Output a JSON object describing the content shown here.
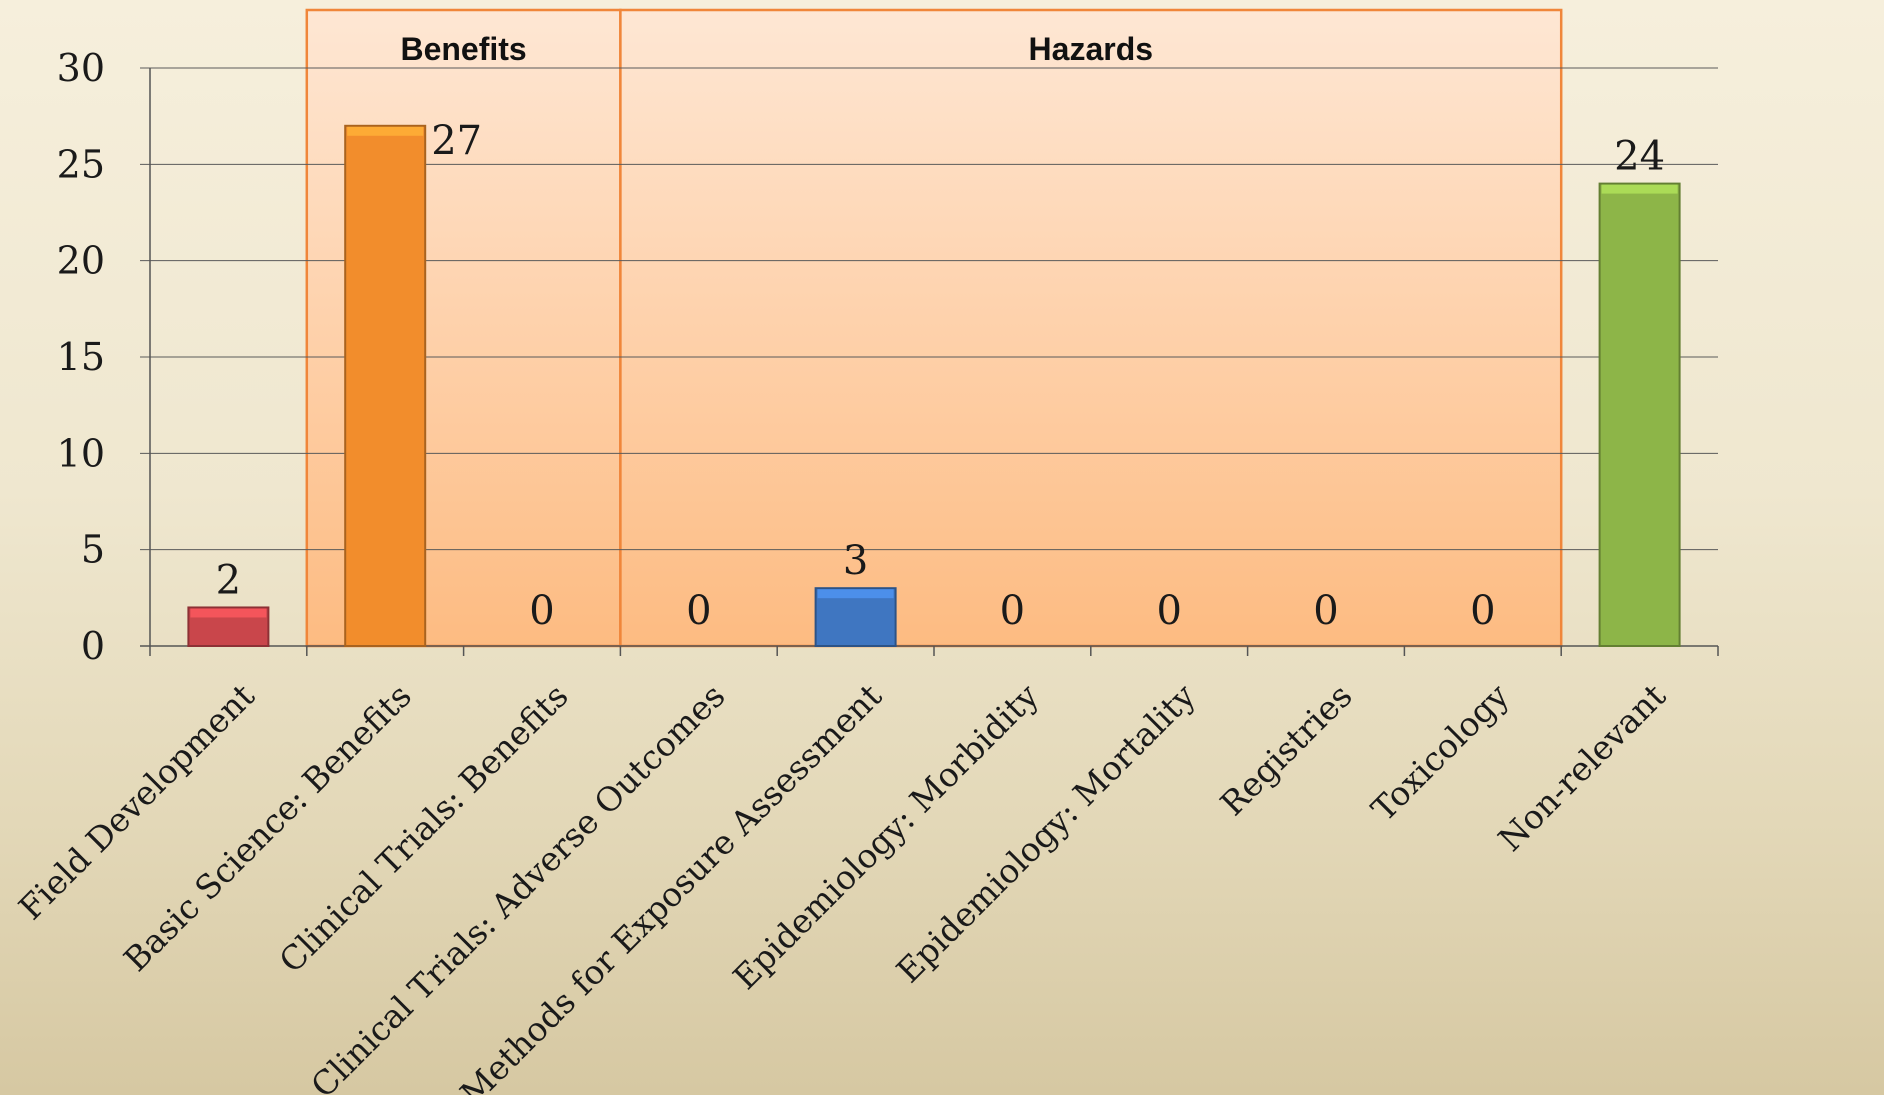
{
  "chart_data": {
    "type": "bar",
    "title": "",
    "xlabel": "",
    "ylabel": "",
    "ylim": [
      0,
      30
    ],
    "yticks": [
      0,
      5,
      10,
      15,
      20,
      25,
      30
    ],
    "grid": true,
    "categories": [
      "Field Development",
      "Basic Science: Benefits",
      "Clinical Trials: Benefits",
      "Clinical Trials: Adverse Outcomes",
      "Methods for Exposure Assessment",
      "Epidemiology: Morbidity",
      "Epidemiology: Mortality",
      "Registries",
      "Toxicology",
      "Non-relevant"
    ],
    "values": [
      2,
      27,
      0,
      0,
      3,
      0,
      0,
      0,
      0,
      24
    ],
    "data_labels": [
      "2",
      "27",
      "0",
      "0",
      "3",
      "0",
      "0",
      "0",
      "0",
      "24"
    ],
    "colors": [
      "#c9464b",
      "#f28d2c",
      "#f28d2c",
      "#f28d2c",
      "#3f76c1",
      "#3f76c1",
      "#3f76c1",
      "#3f76c1",
      "#3f76c1",
      "#8db548"
    ],
    "groups": [
      {
        "label": "Benefits",
        "from_category": 1,
        "to_category": 2
      },
      {
        "label": "Hazards",
        "from_category": 3,
        "to_category": 8
      }
    ],
    "group_fill": "#ffc79a",
    "group_border": "#f0863a"
  }
}
